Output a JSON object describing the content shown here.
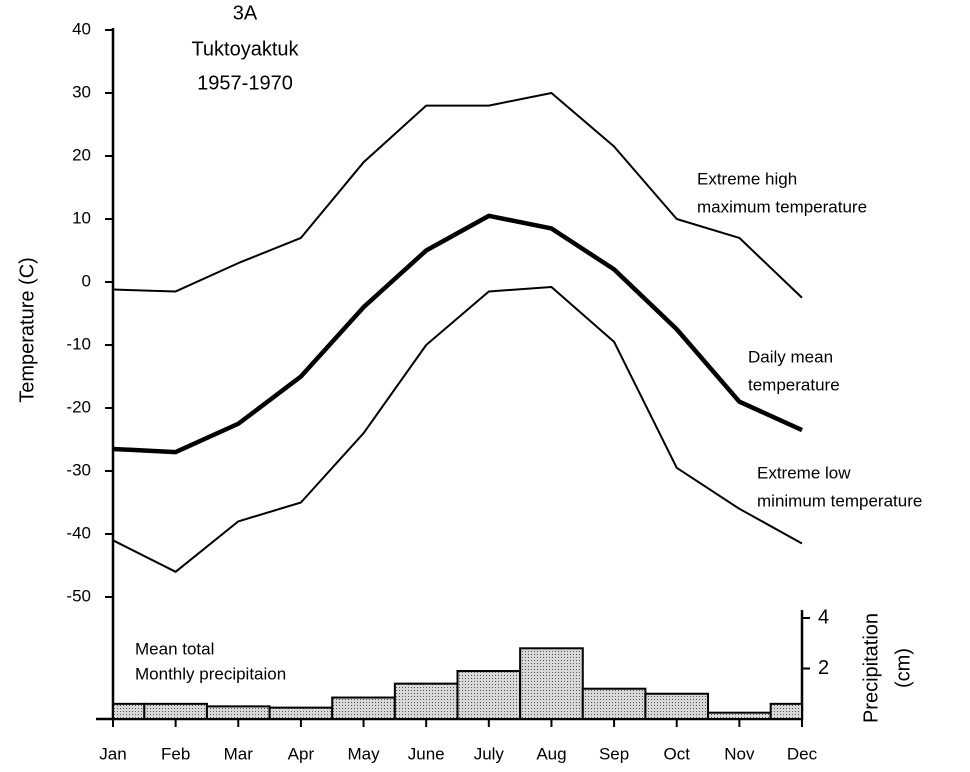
{
  "chart_data": {
    "type": "line",
    "title_lines": [
      "3A",
      "Tuktoyaktuk",
      "1957-1970"
    ],
    "y_label": "Temperature (C)",
    "y2_label_lines": [
      "Precipitation",
      "(cm)"
    ],
    "categories": [
      "Jan",
      "Feb",
      "Mar",
      "Apr",
      "May",
      "June",
      "July",
      "Aug",
      "Sep",
      "Oct",
      "Nov",
      "Dec"
    ],
    "ylim": [
      -50,
      40
    ],
    "yticks": [
      40,
      30,
      20,
      10,
      0,
      -10,
      -20,
      -30,
      -40,
      -50
    ],
    "y2lim": [
      0,
      4
    ],
    "y2ticks": [
      2,
      4
    ],
    "series": [
      {
        "name_lines": [
          "Extreme high",
          "maximum temperature"
        ],
        "color": "#000000",
        "width": 2,
        "values": [
          -1.2,
          -1.5,
          3,
          7,
          19,
          28,
          28,
          30,
          21.5,
          10,
          7,
          -2.5
        ]
      },
      {
        "name_lines": [
          "Daily mean",
          "temperature"
        ],
        "color": "#000000",
        "width": 4.5,
        "values": [
          -26.5,
          -27,
          -22.5,
          -15,
          -4,
          5,
          10.5,
          8.5,
          2,
          -7.5,
          -19,
          -23.5
        ]
      },
      {
        "name_lines": [
          "Extreme low",
          "minimum temperature"
        ],
        "color": "#000000",
        "width": 2,
        "values": [
          -41,
          -46,
          -38,
          -35,
          -24,
          -10,
          -1.5,
          -0.8,
          -9.5,
          -29.5,
          -36,
          -41.5
        ]
      },
      {
        "type": "bar",
        "axis": "y2",
        "name_lines": [
          "Mean total",
          "Monthly precipitaion"
        ],
        "color": "#c8c8c8",
        "values": [
          0.6,
          0.6,
          0.5,
          0.45,
          0.85,
          1.4,
          1.9,
          2.8,
          1.2,
          1.0,
          0.25,
          0.6
        ]
      }
    ]
  }
}
